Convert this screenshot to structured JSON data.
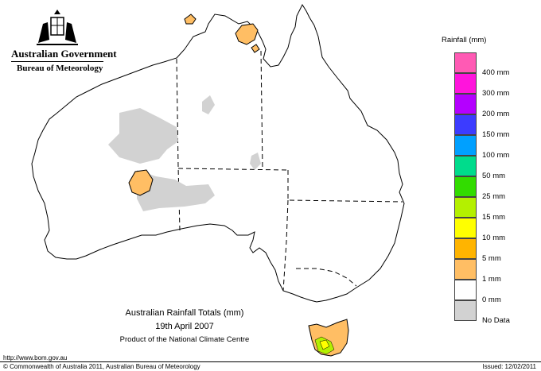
{
  "header": {
    "government": "Australian Government",
    "bureau": "Bureau of Meteorology",
    "crest_icon": "coat-of-arms-icon"
  },
  "legend": {
    "title": "Rainfall (mm)",
    "entries": [
      {
        "label": "",
        "color": "#ff5ab4"
      },
      {
        "label": "400 mm",
        "color": "#ff14dc"
      },
      {
        "label": "300 mm",
        "color": "#b400ff"
      },
      {
        "label": "200 mm",
        "color": "#3c3cff"
      },
      {
        "label": "150 mm",
        "color": "#00a0ff"
      },
      {
        "label": "100 mm",
        "color": "#00dc8c"
      },
      {
        "label": "50 mm",
        "color": "#32dc00"
      },
      {
        "label": "25 mm",
        "color": "#b4f000"
      },
      {
        "label": "15 mm",
        "color": "#ffff00"
      },
      {
        "label": "10 mm",
        "color": "#ffb400"
      },
      {
        "label": "5 mm",
        "color": "#ffbe64"
      },
      {
        "label": "1 mm",
        "color": "#ffffff"
      },
      {
        "label": "0 mm",
        "color": "#d2d2d2"
      },
      {
        "label": "No Data",
        "color": ""
      }
    ]
  },
  "map": {
    "title": "Australian Rainfall Totals (mm)",
    "date": "19th April 2007",
    "product": "Product of the National Climate Centre",
    "colors": {
      "no_data": "#d2d2d2",
      "light": "#ffbe64",
      "moderate": "#ffb400",
      "heavy": "#b4f000",
      "heavier": "#ffff00",
      "border": "#000000"
    }
  },
  "footer": {
    "url": "http://www.bom.gov.au",
    "copyright": "© Commonwealth of Australia 2011, Australian Bureau of Meteorology",
    "issued": "Issued: 12/02/2011"
  }
}
